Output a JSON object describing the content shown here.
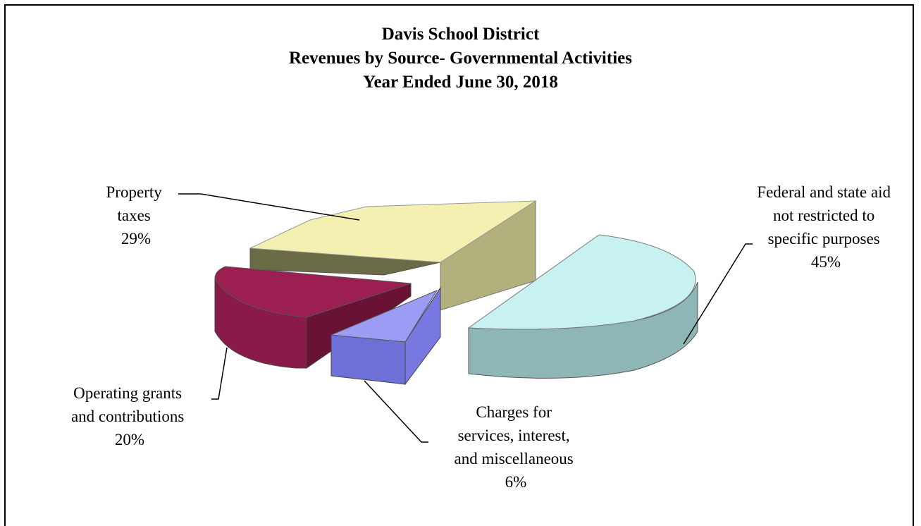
{
  "chart_data": {
    "type": "pie",
    "title": [
      "Davis School District",
      "Revenues by Source- Governmental Activities",
      "Year Ended June 30, 2018"
    ],
    "slices": [
      {
        "label_lines": [
          "Property",
          "taxes",
          "29%"
        ],
        "value": 29,
        "color": "#f4f0b2"
      },
      {
        "label_lines": [
          "Operating grants",
          "and contributions",
          "20%"
        ],
        "value": 20,
        "color": "#9c1f52"
      },
      {
        "label_lines": [
          "Charges for",
          "services, interest,",
          "and miscellaneous",
          "6%"
        ],
        "value": 6,
        "color": "#8c8cf0"
      },
      {
        "label_lines": [
          "Federal and state aid",
          "not restricted to",
          "specific purposes",
          "45%"
        ],
        "value": 45,
        "color": "#c8f2f2"
      }
    ],
    "style": "3d-exploded",
    "legend": "none"
  }
}
